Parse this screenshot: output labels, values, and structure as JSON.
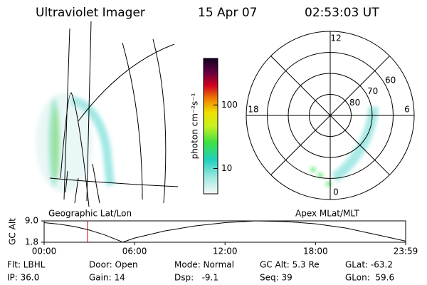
{
  "header": {
    "title": "Ultraviolet Imager",
    "date": "15 Apr 07",
    "time": "02:53:03 UT"
  },
  "geo_panel": {
    "label": "Geographic Lat/Lon"
  },
  "colorbar": {
    "label": "photon cm⁻²s⁻¹",
    "clim": [
      4,
      540
    ],
    "cticks": [
      10,
      100
    ],
    "log_scale": true
  },
  "polar": {
    "label": "Apex MLat/MLT",
    "rlim": [
      90,
      50
    ],
    "lat_ticks": [
      80,
      70,
      60
    ],
    "mlt_ticks": [
      12,
      18,
      6,
      0
    ]
  },
  "chart_data": {
    "type": "line",
    "ylabel": "GC Alt",
    "x": [
      0,
      1,
      2,
      3,
      4,
      5,
      5.2,
      6,
      8,
      10,
      12,
      14,
      16,
      18,
      20,
      22,
      23.98
    ],
    "series": [
      {
        "name": "GC Alt",
        "color": "#000000",
        "values": [
          8.4,
          7.9,
          7.1,
          5.9,
          4.3,
          2.3,
          1.8,
          3.2,
          5.6,
          7.3,
          8.4,
          9.0,
          8.8,
          8.0,
          6.6,
          4.4,
          2.2
        ]
      }
    ],
    "xlim": [
      0,
      23.98
    ],
    "xticks": [
      {
        "value": 0,
        "label": "00:00"
      },
      {
        "value": 6,
        "label": "06:00"
      },
      {
        "value": 12,
        "label": "12:00"
      },
      {
        "value": 18,
        "label": "18:00"
      },
      {
        "value": 23.98,
        "label": "23:59"
      }
    ],
    "ylim": [
      1.8,
      9.0
    ],
    "yticks": [
      {
        "value": 9.0,
        "label": "9.0"
      },
      {
        "value": 1.8,
        "label": "1.8"
      }
    ],
    "marker_x": 2.88,
    "marker_color": "#cc0000"
  },
  "status": [
    [
      "Flt: LBHL",
      "Door: Open",
      "Mode: Normal",
      "GC Alt: 5.3 Re",
      "GLat: -63.2"
    ],
    [
      "IP: 36.0",
      "Gain: 14",
      "Dsp:   -9.1",
      "Seq: 39",
      "GLon:  59.6"
    ]
  ]
}
